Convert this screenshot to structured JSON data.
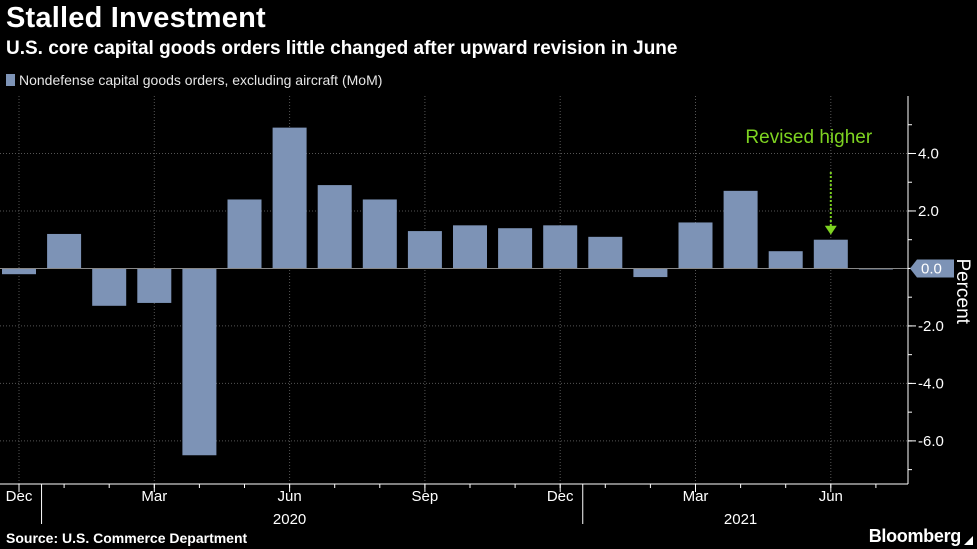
{
  "chart_data": {
    "type": "bar",
    "title": "Stalled Investment",
    "subtitle": "U.S. core capital goods orders little changed after upward revision in June",
    "ylabel": "Percent",
    "ylim": [
      -7.5,
      6.0
    ],
    "yticks": [
      -6.0,
      -4.0,
      -2.0,
      0.0,
      2.0,
      4.0
    ],
    "last_value_label": "0.0",
    "categories": [
      "2019-12",
      "2020-01",
      "2020-02",
      "2020-03",
      "2020-04",
      "2020-05",
      "2020-06",
      "2020-07",
      "2020-08",
      "2020-09",
      "2020-10",
      "2020-11",
      "2020-12",
      "2021-01",
      "2021-02",
      "2021-03",
      "2021-04",
      "2021-05",
      "2021-06",
      "2021-07"
    ],
    "series": [
      {
        "name": "Nondefense capital goods orders, excluding aircraft (MoM)",
        "values": [
          -0.2,
          1.2,
          -1.3,
          -1.2,
          -6.5,
          2.4,
          4.9,
          2.9,
          2.4,
          1.3,
          1.5,
          1.4,
          1.5,
          1.1,
          -0.3,
          1.6,
          2.7,
          0.6,
          1.0,
          0.0
        ]
      }
    ],
    "x_tick_labels": [
      {
        "index": 0,
        "label": "Dec"
      },
      {
        "index": 3,
        "label": "Mar"
      },
      {
        "index": 6,
        "label": "Jun"
      },
      {
        "index": 9,
        "label": "Sep"
      },
      {
        "index": 12,
        "label": "Dec"
      },
      {
        "index": 15,
        "label": "Mar"
      },
      {
        "index": 18,
        "label": "Jun"
      }
    ],
    "year_labels": [
      {
        "after_index": 6,
        "label": "2020"
      },
      {
        "after_index": 16,
        "label": "2021"
      }
    ],
    "annotation": {
      "text": "Revised higher",
      "index": 18
    },
    "grid": true,
    "legend_position": "top-left"
  },
  "source": "Source: U.S. Commerce Department",
  "brand": "Bloomberg",
  "colors": {
    "bar": "#7d93b6",
    "annotation": "#7ed321",
    "grid": "#555555",
    "axis": "#ffffff"
  }
}
